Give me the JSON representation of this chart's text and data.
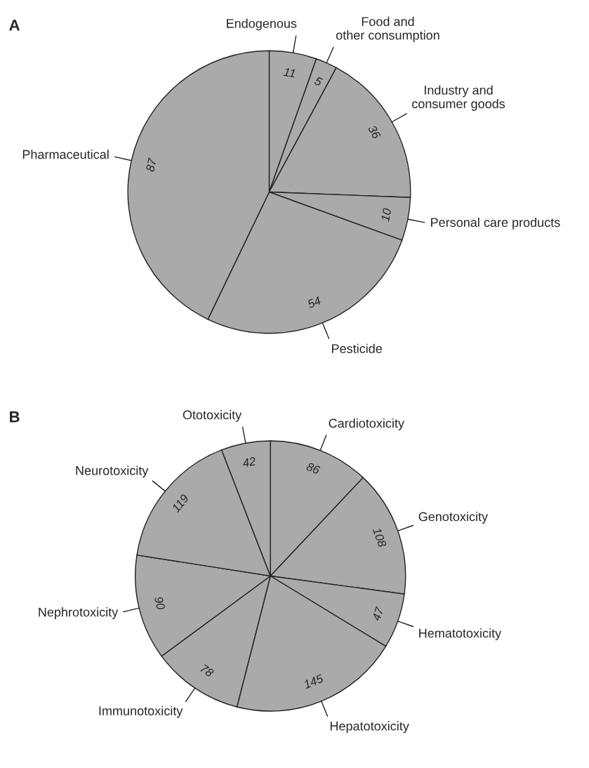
{
  "chart_data": [
    {
      "type": "pie",
      "title": "A",
      "categories": [
        "Endogenous",
        "Food and\nother consumption",
        "Industry and\nconsumer goods",
        "Personal care products",
        "Pesticide",
        "Pharmaceutical"
      ],
      "values": [
        11,
        5,
        36,
        10,
        54,
        87
      ],
      "colors": [
        "#aaaaaa",
        "#aaaaaa",
        "#aaaaaa",
        "#aaaaaa",
        "#aaaaaa",
        "#aaaaaa"
      ],
      "data_labels": true
    },
    {
      "type": "pie",
      "title": "B",
      "categories": [
        "Cardiotoxicity",
        "Genotoxicity",
        "Hematotoxicity",
        "Hepatotoxicity",
        "Immunotoxicity",
        "Nephrotoxicity",
        "Neurotoxicity",
        "Ototoxicity"
      ],
      "values": [
        86,
        108,
        47,
        145,
        78,
        90,
        119,
        42
      ],
      "colors": [
        "#aaaaaa",
        "#aaaaaa",
        "#aaaaaa",
        "#aaaaaa",
        "#aaaaaa",
        "#aaaaaa",
        "#aaaaaa",
        "#aaaaaa"
      ],
      "data_labels": true
    }
  ]
}
